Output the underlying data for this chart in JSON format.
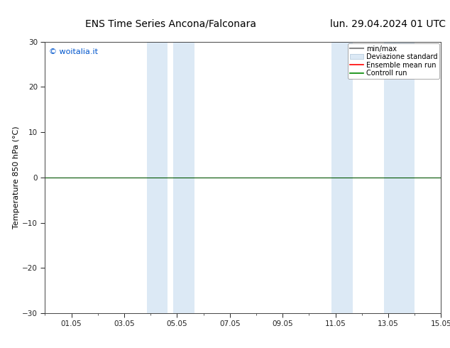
{
  "title": "ENS Time Series Ancona/Falconara",
  "title_right": "lun. 29.04.2024 01 UTC",
  "ylabel": "Temperature 850 hPa (°C)",
  "watermark": "© woitalia.it",
  "xlim": [
    0,
    14
  ],
  "ylim": [
    -30,
    30
  ],
  "yticks": [
    -30,
    -20,
    -10,
    0,
    10,
    20,
    30
  ],
  "xtick_labels": [
    "01.05",
    "03.05",
    "05.05",
    "07.05",
    "09.05",
    "11.05",
    "13.05",
    "15.05"
  ],
  "xtick_positions": [
    1,
    3,
    5,
    7,
    9,
    11,
    13,
    15
  ],
  "shaded_regions": [
    {
      "xmin": 3.85,
      "xmax": 4.65,
      "color": "#dce9f5"
    },
    {
      "xmin": 4.85,
      "xmax": 5.65,
      "color": "#dce9f5"
    },
    {
      "xmin": 10.85,
      "xmax": 11.65,
      "color": "#dce9f5"
    },
    {
      "xmin": 12.85,
      "xmax": 14.0,
      "color": "#dce9f5"
    }
  ],
  "hline_y": 0,
  "hline_color": "#005500",
  "hline_lw": 0.8,
  "legend_items": [
    {
      "label": "min/max",
      "color": "#888888",
      "lw": 1.5,
      "ls": "-",
      "type": "line"
    },
    {
      "label": "Deviazione standard",
      "color": "#dce9f5",
      "edge": "#aec6d8",
      "type": "patch"
    },
    {
      "label": "Ensemble mean run",
      "color": "red",
      "lw": 1.2,
      "ls": "-",
      "type": "line"
    },
    {
      "label": "Controll run",
      "color": "#008800",
      "lw": 1.2,
      "ls": "-",
      "type": "line"
    }
  ],
  "background_color": "white",
  "plot_bg_color": "white",
  "spine_color": "#444444",
  "tick_color": "#222222",
  "watermark_color": "#0055cc",
  "title_fontsize": 10,
  "label_fontsize": 8,
  "tick_fontsize": 7.5
}
